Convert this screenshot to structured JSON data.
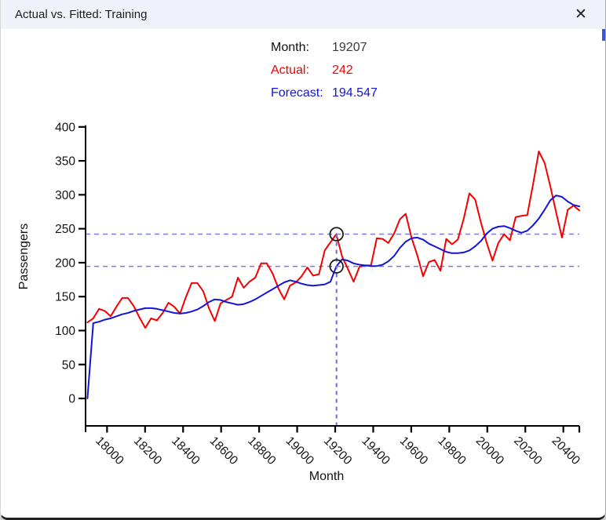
{
  "window": {
    "title": "Actual vs. Fitted: Training",
    "close_glyph": "✕"
  },
  "readout": {
    "month_label": "Month:",
    "month_value": "19207",
    "actual_label": "Actual:",
    "actual_value": "242",
    "forecast_label": "Forecast:",
    "forecast_value": "194.547"
  },
  "chart_data": {
    "type": "line",
    "title": "Actual vs. Fitted: Training",
    "xlabel": "Month",
    "ylabel": "Passengers",
    "x_ticks": [
      18000,
      18200,
      18400,
      18600,
      18800,
      19000,
      19200,
      19400,
      19600,
      19800,
      20000,
      20200,
      20400
    ],
    "y_ticks": [
      0,
      50,
      100,
      150,
      200,
      250,
      300,
      350,
      400
    ],
    "xlim": [
      17887,
      20484
    ],
    "ylim": [
      -40.4,
      400
    ],
    "x_start_day": 17897,
    "x_step_days": 30.436,
    "grid": false,
    "legend_position": "none",
    "series": [
      {
        "name": "Actual",
        "color": "#f40000",
        "values": [
          112,
          118,
          132,
          129,
          121,
          135,
          148,
          148,
          136,
          119,
          104,
          118,
          115,
          126,
          141,
          135,
          125,
          149,
          170,
          170,
          158,
          133,
          114,
          140,
          145,
          150,
          178,
          163,
          172,
          178,
          199,
          199,
          184,
          162,
          146,
          166,
          171,
          180,
          193,
          181,
          183,
          218,
          230,
          242,
          209,
          191,
          172,
          194,
          196,
          196,
          236,
          235,
          229,
          243,
          264,
          272,
          237,
          211,
          180,
          201,
          204,
          188,
          235,
          227,
          234,
          264,
          302,
          293,
          259,
          229,
          203,
          229,
          242,
          233,
          267,
          269,
          270,
          315,
          364,
          347,
          312,
          274,
          237,
          278,
          284,
          277
        ]
      },
      {
        "name": "Forecast",
        "color": "#1414d6",
        "values": [
          0,
          111,
          113,
          116,
          118,
          121,
          124,
          126,
          129,
          131,
          133,
          133,
          132,
          130,
          128,
          126,
          125,
          126,
          128,
          131,
          136,
          142,
          146,
          145,
          142,
          140,
          138,
          139,
          142,
          146,
          151,
          156,
          161,
          166,
          171,
          174,
          172,
          169,
          167,
          166,
          167,
          168,
          172,
          194.5,
          205,
          203,
          199,
          197,
          196,
          195,
          195,
          197,
          202,
          210,
          222,
          231,
          236,
          237,
          234,
          228,
          224,
          220,
          216,
          214,
          214,
          215,
          218,
          224,
          232,
          243,
          250,
          253,
          254,
          251,
          247,
          244,
          247,
          255,
          265,
          278,
          292,
          299,
          297,
          290,
          285,
          283
        ]
      }
    ],
    "crosshair": {
      "month_index": 43,
      "month": 19207,
      "actual": 242,
      "forecast": 194.547,
      "line_color": "#7b7bdc",
      "marker_color": "#1b1b1b"
    },
    "axis_color": "#000000",
    "tick_label_color": "#141414"
  }
}
